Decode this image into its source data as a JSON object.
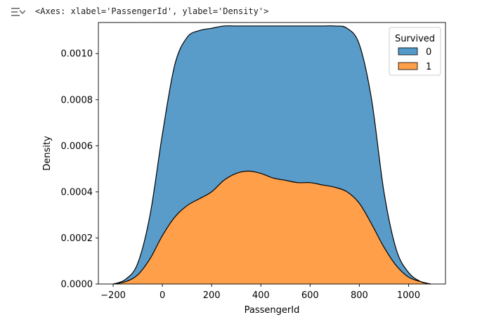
{
  "output": {
    "icon": "output-toggle-icon",
    "repr": "<Axes: xlabel='PassengerId', ylabel='Density'>"
  },
  "chart_data": {
    "type": "area",
    "stacked": true,
    "title": "",
    "xlabel": "PassengerId",
    "ylabel": "Density",
    "xlim": [
      -260,
      1150
    ],
    "ylim": [
      0,
      0.001135
    ],
    "xticks": [
      -200,
      0,
      200,
      400,
      600,
      800,
      1000
    ],
    "xtick_labels": [
      "−200",
      "0",
      "200",
      "400",
      "600",
      "800",
      "1000"
    ],
    "yticks": [
      0.0,
      0.0002,
      0.0004,
      0.0006,
      0.0008,
      0.001
    ],
    "ytick_labels": [
      "0.0000",
      "0.0002",
      "0.0004",
      "0.0006",
      "0.0008",
      "0.0010"
    ],
    "grid": false,
    "legend": {
      "title": "Survived",
      "placement": "top-right"
    },
    "x": [
      -200,
      -150,
      -100,
      -50,
      0,
      50,
      100,
      150,
      200,
      250,
      300,
      350,
      400,
      450,
      500,
      550,
      600,
      650,
      700,
      750,
      800,
      850,
      900,
      950,
      1000,
      1050,
      1090
    ],
    "series": [
      {
        "name": "1",
        "color": "#ff9f49",
        "values": [
          0.0,
          1e-05,
          4e-05,
          0.00011,
          0.00021,
          0.00029,
          0.00034,
          0.00037,
          0.0004,
          0.00045,
          0.00048,
          0.00049,
          0.00048,
          0.00046,
          0.00045,
          0.00044,
          0.00044,
          0.00043,
          0.00042,
          0.0004,
          0.00035,
          0.00026,
          0.00016,
          8e-05,
          3e-05,
          1e-05,
          0.0
        ]
      },
      {
        "name": "0",
        "color": "#5499c7",
        "cumulative_values": [
          0.0,
          2e-05,
          9e-05,
          0.0003,
          0.00065,
          0.00095,
          0.00107,
          0.0011,
          0.00111,
          0.00112,
          0.00112,
          0.00112,
          0.00112,
          0.00112,
          0.00112,
          0.00112,
          0.00112,
          0.00112,
          0.00112,
          0.00111,
          0.00104,
          0.0008,
          0.0004,
          0.00015,
          5e-05,
          1e-05,
          0.0
        ]
      }
    ]
  }
}
